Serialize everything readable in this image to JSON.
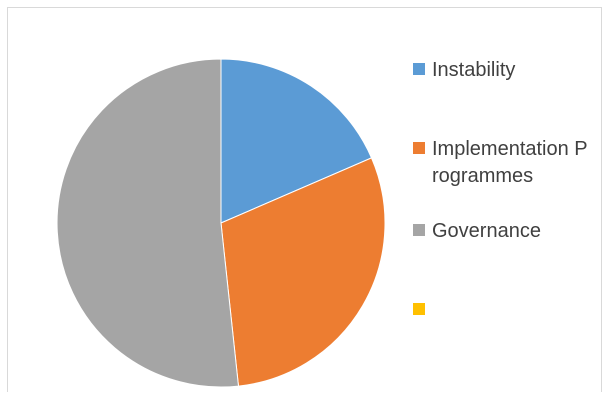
{
  "chart_data": {
    "type": "pie",
    "categories": [
      "Instability",
      "Implementation Programmes",
      "Governance",
      ""
    ],
    "values": [
      18.5,
      29.8,
      51.7,
      0
    ],
    "colors": [
      "#5b9bd5",
      "#ed7d31",
      "#a5a5a5",
      "#ffc000"
    ],
    "start_angle_deg": 0,
    "direction": "clockwise",
    "legend_position": "right"
  },
  "legend": {
    "items": [
      {
        "label": "Instability",
        "color": "#5b9bd5"
      },
      {
        "label": "Implementation Programmes",
        "color": "#ed7d31"
      },
      {
        "label": "Governance",
        "color": "#a5a5a5"
      },
      {
        "label": "",
        "color": "#ffc000"
      }
    ]
  }
}
